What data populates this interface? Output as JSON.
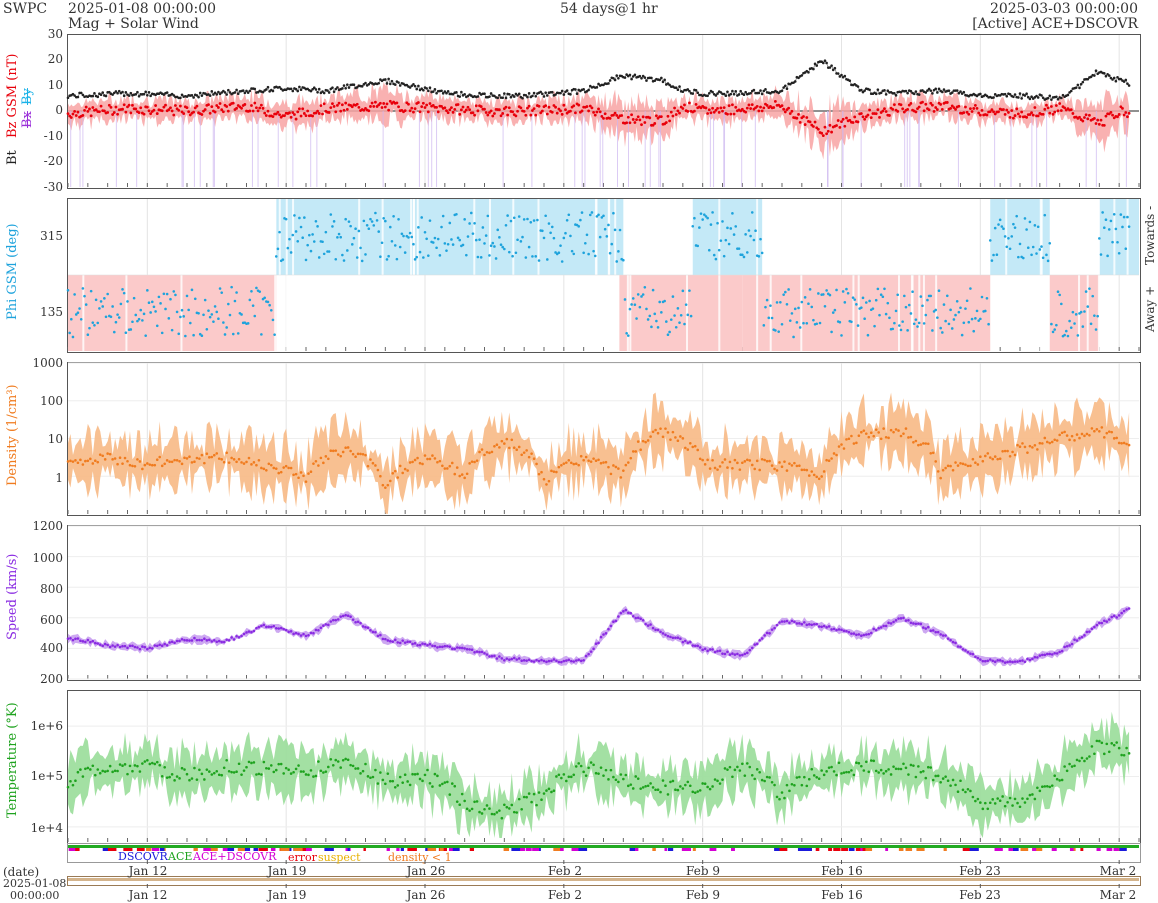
{
  "header": {
    "org": "SWPC",
    "start": "2025-01-08 00:00:00",
    "subtitle": "Mag + Solar Wind",
    "span": "54 days@1 hr",
    "end": "2025-03-03 00:00:00",
    "source": "[Active] ACE+DSCOVR"
  },
  "footer": {
    "date_label": "(date)",
    "date_value": "2025-01-08",
    "time_value": "00:00:00",
    "date_ticks": [
      "Jan 12",
      "Jan 19",
      "Jan 26",
      "Feb 2",
      "Feb 9",
      "Feb 16",
      "Feb 23",
      "Mar 2"
    ],
    "legend": {
      "dscovr": "DSCOVR",
      "ace": "ACE",
      "both": "ACE+DSCOVR",
      "error": "error",
      "suspect": "suspect",
      "density": "density < 1"
    }
  },
  "colors": {
    "bz": "#e8000b",
    "bt": "#222222",
    "bx": "#9b30d9",
    "by": "#1ab2e8",
    "phi_towards": "#c4e9f7",
    "phi_away": "#fbcaca",
    "phi_pts": "#1ea3dc",
    "density": "#f07c20",
    "density_fill": "#f7b985",
    "speed": "#8a2be2",
    "speed_fill": "#c89ff0",
    "temp": "#1fa31f",
    "temp_fill": "#99dd99"
  },
  "chart_data": [
    {
      "type": "line",
      "panel": "mag",
      "ylabels": {
        "bt": "Bt",
        "bz": "Bz GSM (nT)",
        "bx": "Bx",
        "by": "By"
      },
      "ylim": [
        -30,
        30
      ],
      "yticks": [
        "30",
        "20",
        "10",
        "0",
        "-10",
        "-20",
        "-30"
      ],
      "series": [
        {
          "name": "Bt",
          "x_day": [
            0,
            3,
            6,
            9,
            11,
            13,
            16,
            19,
            21,
            23,
            26,
            28,
            30,
            31,
            32,
            34,
            36,
            38,
            40,
            42,
            44,
            46,
            48,
            50,
            51,
            52,
            53,
            54
          ],
          "values": [
            6,
            7,
            6,
            8,
            9,
            8,
            12,
            7,
            6,
            6,
            8,
            14,
            12,
            8,
            7,
            7,
            8,
            20,
            8,
            7,
            8,
            6,
            6,
            5,
            10,
            16,
            12,
            10
          ]
        },
        {
          "name": "Bz",
          "x_day": [
            0,
            3,
            6,
            9,
            11,
            13,
            16,
            19,
            21,
            23,
            26,
            28,
            30,
            31,
            32,
            34,
            36,
            38,
            40,
            42,
            44,
            46,
            48,
            50,
            51,
            52,
            53,
            54
          ],
          "values": [
            -1,
            1,
            0,
            2,
            -2,
            1,
            2,
            1,
            0,
            0,
            1,
            -3,
            -4,
            2,
            0,
            1,
            2,
            -8,
            -2,
            1,
            2,
            0,
            -1,
            1,
            -2,
            -5,
            0,
            -1
          ]
        }
      ]
    },
    {
      "type": "scatter",
      "panel": "phi",
      "ylabel": "Phi GSM (deg)",
      "yticks": [
        "315",
        "135"
      ],
      "right_labels": [
        "Towards -",
        "Away +"
      ],
      "towards_intervals_day": [
        [
          10.5,
          28
        ],
        [
          31.5,
          35
        ],
        [
          46.5,
          49.5
        ],
        [
          52,
          54
        ]
      ],
      "away_intervals_day": [
        [
          0,
          10.5
        ],
        [
          27.8,
          34
        ],
        [
          34,
          46.5
        ],
        [
          49.5,
          52
        ]
      ]
    },
    {
      "type": "area",
      "panel": "density",
      "ylabel": "Density (1/cm³)",
      "yscale": "log",
      "ylim": [
        0.1,
        1000
      ],
      "yticks": [
        "1000",
        "100",
        "10",
        "1"
      ],
      "x_day": [
        0,
        2,
        4,
        6,
        8,
        10,
        12,
        14,
        16,
        18,
        20,
        22,
        24,
        26,
        28,
        30,
        32,
        34,
        36,
        38,
        40,
        42,
        44,
        46,
        48,
        50,
        52,
        54
      ],
      "values": [
        2,
        3,
        2,
        3,
        3,
        2,
        1,
        5,
        0.5,
        3,
        1,
        8,
        0.6,
        3,
        1,
        15,
        2,
        2,
        2,
        1,
        12,
        15,
        1,
        3,
        5,
        10,
        15,
        2
      ]
    },
    {
      "type": "area",
      "panel": "speed",
      "ylabel": "Speed (km/s)",
      "ylim": [
        200,
        1200
      ],
      "yticks": [
        "1200",
        "1000",
        "800",
        "600",
        "400",
        "200"
      ],
      "x_day": [
        0,
        2,
        4,
        6,
        8,
        10,
        12,
        14,
        16,
        18,
        20,
        22,
        24,
        26,
        28,
        30,
        32,
        34,
        36,
        38,
        40,
        42,
        44,
        46,
        48,
        50,
        52,
        53,
        54
      ],
      "values": [
        470,
        420,
        400,
        460,
        450,
        550,
        480,
        620,
        460,
        420,
        400,
        330,
        320,
        320,
        650,
        500,
        400,
        350,
        580,
        550,
        480,
        600,
        500,
        320,
        310,
        380,
        560,
        620,
        720
      ]
    },
    {
      "type": "area",
      "panel": "temperature",
      "ylabel": "Temperature (°K)",
      "yscale": "log",
      "ylim": [
        5000,
        5000000
      ],
      "yticks": [
        "1e+6",
        "1e+5",
        "1e+4"
      ],
      "x_day": [
        0,
        2,
        4,
        6,
        8,
        10,
        12,
        14,
        16,
        18,
        20,
        22,
        24,
        26,
        28,
        30,
        32,
        34,
        36,
        38,
        40,
        42,
        44,
        46,
        48,
        50,
        52,
        54
      ],
      "values": [
        80000,
        150000,
        150000,
        100000,
        150000,
        150000,
        120000,
        200000,
        80000,
        100000,
        30000,
        20000,
        40000,
        150000,
        80000,
        60000,
        60000,
        150000,
        40000,
        120000,
        150000,
        150000,
        100000,
        30000,
        30000,
        80000,
        400000,
        300000
      ]
    }
  ]
}
